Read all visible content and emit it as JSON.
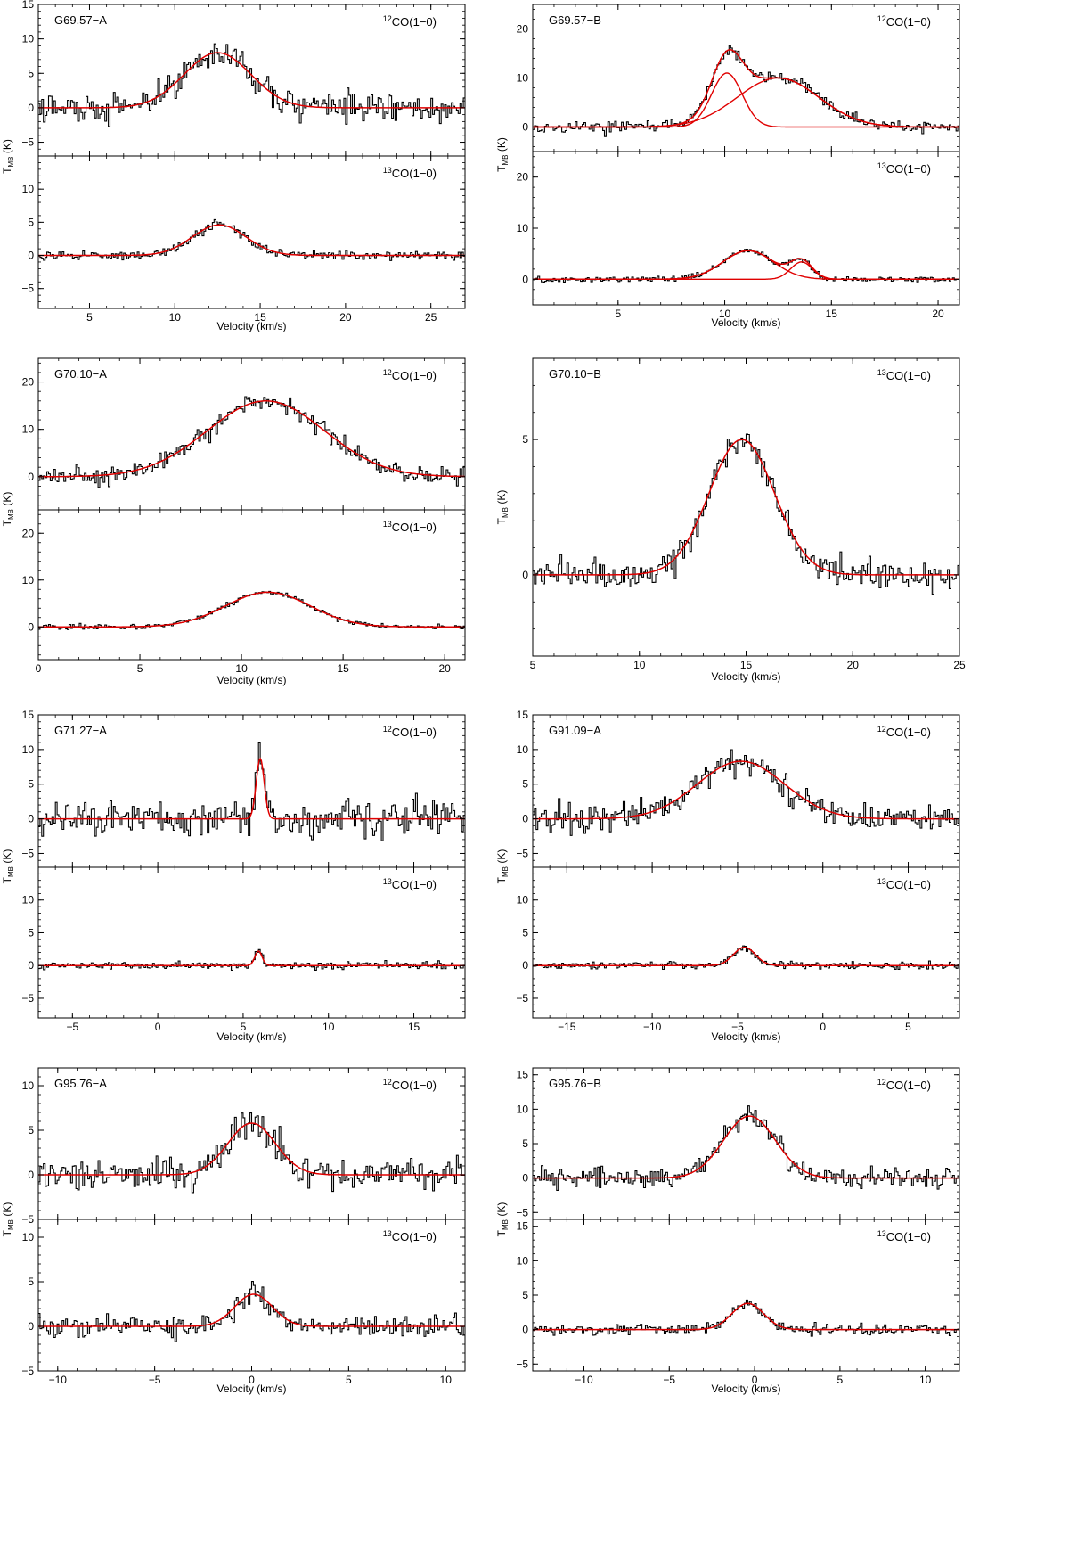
{
  "figure": {
    "colors": {
      "spectrum": "#000000",
      "fit": "#e00000",
      "axis": "#000000"
    },
    "tick_direction": "in"
  },
  "chart_data": [
    {
      "type": "line",
      "source": "G69.57-A",
      "xlabel": "Velocity (km/s)",
      "ylabel": "T_MB (K)",
      "xlim": [
        2,
        27
      ],
      "xticks": [
        5,
        10,
        15,
        20,
        25
      ],
      "panels": [
        {
          "line": "12CO(1-0)",
          "line_label": {
            "iso": "12",
            "rest": "CO(1−0)"
          },
          "ylim": [
            -7,
            15
          ],
          "yticks": [
            -5,
            0,
            5,
            10,
            15
          ],
          "show_ytick_labels": [
            -5,
            0,
            5,
            10,
            15
          ],
          "noise": 1.9,
          "components": [
            {
              "amp": 8.0,
              "center": 12.5,
              "fwhm": 4.6
            }
          ]
        },
        {
          "line": "13CO(1-0)",
          "line_label": {
            "iso": "13",
            "rest": "CO(1−0)"
          },
          "ylim": [
            -8,
            15
          ],
          "yticks": [
            -5,
            0,
            5,
            10,
            15
          ],
          "show_ytick_labels": [
            -5,
            0,
            5,
            10
          ],
          "noise": 0.55,
          "components": [
            {
              "amp": 4.6,
              "center": 12.6,
              "fwhm": 3.7
            }
          ]
        }
      ]
    },
    {
      "type": "line",
      "source": "G69.57-B",
      "xlabel": "Velocity (km/s)",
      "ylabel": "T_MB (K)",
      "xlim": [
        1,
        21
      ],
      "xticks": [
        5,
        10,
        15,
        20
      ],
      "panels": [
        {
          "line": "12CO(1-0)",
          "line_label": {
            "iso": "12",
            "rest": "CO(1−0)"
          },
          "ylim": [
            -5,
            25
          ],
          "yticks": [
            0,
            10,
            20
          ],
          "show_ytick_labels": [
            0,
            10,
            20
          ],
          "noise": 1.0,
          "components": [
            {
              "amp": 11.0,
              "center": 10.1,
              "fwhm": 1.7
            },
            {
              "amp": 10.0,
              "center": 12.5,
              "fwhm": 4.5
            }
          ]
        },
        {
          "line": "13CO(1-0)",
          "line_label": {
            "iso": "13",
            "rest": "CO(1−0)"
          },
          "ylim": [
            -5,
            25
          ],
          "yticks": [
            0,
            10,
            20
          ],
          "show_ytick_labels": [
            0,
            10,
            20
          ],
          "noise": 0.45,
          "components": [
            {
              "amp": 5.6,
              "center": 11.1,
              "fwhm": 2.8
            },
            {
              "amp": 3.4,
              "center": 13.6,
              "fwhm": 1.2
            }
          ]
        }
      ]
    },
    {
      "type": "line",
      "source": "G70.10-A",
      "xlabel": "Velocity (km/s)",
      "ylabel": "T_MB (K)",
      "xlim": [
        0,
        21
      ],
      "xticks": [
        0,
        5,
        10,
        15,
        20
      ],
      "panels": [
        {
          "line": "12CO(1-0)",
          "line_label": {
            "iso": "12",
            "rest": "CO(1−0)"
          },
          "ylim": [
            -7,
            25
          ],
          "yticks": [
            0,
            10,
            20
          ],
          "show_ytick_labels": [
            0,
            10,
            20
          ],
          "noise": 1.6,
          "components": [
            {
              "amp": 16.0,
              "center": 11.2,
              "fwhm": 6.8
            }
          ]
        },
        {
          "line": "13CO(1-0)",
          "line_label": {
            "iso": "13",
            "rest": "CO(1−0)"
          },
          "ylim": [
            -7,
            25
          ],
          "yticks": [
            0,
            10,
            20
          ],
          "show_ytick_labels": [
            0,
            10,
            20
          ],
          "noise": 0.5,
          "components": [
            {
              "amp": 7.4,
              "center": 11.3,
              "fwhm": 4.9
            }
          ]
        }
      ]
    },
    {
      "type": "line",
      "source": "G70.10-B",
      "xlabel": "Velocity (km/s)",
      "ylabel": "T_MB (K)",
      "xlim": [
        5,
        25
      ],
      "xticks": [
        5,
        10,
        15,
        20,
        25
      ],
      "panels": [
        {
          "line": "13CO(1-0)",
          "line_label": {
            "iso": "13",
            "rest": "CO(1−0)"
          },
          "ylim": [
            -3,
            8
          ],
          "yticks": [
            0,
            5
          ],
          "show_ytick_labels": [
            0,
            5
          ],
          "noise": 0.45,
          "components": [
            {
              "amp": 5.0,
              "center": 14.8,
              "fwhm": 3.6
            }
          ]
        }
      ]
    },
    {
      "type": "line",
      "source": "G71.27-A",
      "xlabel": "Velocity (km/s)",
      "ylabel": "T_MB (K)",
      "xlim": [
        -7,
        18
      ],
      "xticks": [
        -5,
        0,
        5,
        10,
        15
      ],
      "panels": [
        {
          "line": "12CO(1-0)",
          "line_label": {
            "iso": "12",
            "rest": "CO(1−0)"
          },
          "ylim": [
            -7,
            15
          ],
          "yticks": [
            -5,
            0,
            5,
            10,
            15
          ],
          "show_ytick_labels": [
            -5,
            0,
            5,
            10,
            15
          ],
          "noise": 2.2,
          "components": [
            {
              "amp": 8.7,
              "center": 6.0,
              "fwhm": 0.55
            }
          ]
        },
        {
          "line": "13CO(1-0)",
          "line_label": {
            "iso": "13",
            "rest": "CO(1−0)"
          },
          "ylim": [
            -8,
            15
          ],
          "yticks": [
            -5,
            0,
            5,
            10,
            15
          ],
          "show_ytick_labels": [
            -5,
            0,
            5,
            10
          ],
          "noise": 0.45,
          "components": [
            {
              "amp": 2.2,
              "center": 5.9,
              "fwhm": 0.5
            }
          ]
        }
      ]
    },
    {
      "type": "line",
      "source": "G91.09-A",
      "xlabel": "Velocity (km/s)",
      "ylabel": "T_MB (K)",
      "xlim": [
        -17,
        8
      ],
      "xticks": [
        -15,
        -10,
        -5,
        0,
        5
      ],
      "panels": [
        {
          "line": "12CO(1-0)",
          "line_label": {
            "iso": "12",
            "rest": "CO(1−0)"
          },
          "ylim": [
            -7,
            15
          ],
          "yticks": [
            -5,
            0,
            5,
            10,
            15
          ],
          "show_ytick_labels": [
            -5,
            0,
            5,
            10,
            15
          ],
          "noise": 2.0,
          "components": [
            {
              "amp": 8.3,
              "center": -4.8,
              "fwhm": 6.0
            }
          ]
        },
        {
          "line": "13CO(1-0)",
          "line_label": {
            "iso": "13",
            "rest": "CO(1−0)"
          },
          "ylim": [
            -8,
            15
          ],
          "yticks": [
            -5,
            0,
            5,
            10,
            15
          ],
          "show_ytick_labels": [
            -5,
            0,
            5,
            10
          ],
          "noise": 0.5,
          "components": [
            {
              "amp": 2.8,
              "center": -4.6,
              "fwhm": 1.5
            }
          ]
        }
      ]
    },
    {
      "type": "line",
      "source": "G95.76-A",
      "xlabel": "Velocity (km/s)",
      "ylabel": "T_MB (K)",
      "xlim": [
        -11,
        11
      ],
      "xticks": [
        -10,
        -5,
        0,
        5,
        10
      ],
      "panels": [
        {
          "line": "12CO(1-0)",
          "line_label": {
            "iso": "12",
            "rest": "CO(1−0)"
          },
          "ylim": [
            -5,
            12
          ],
          "yticks": [
            -5,
            0,
            5,
            10
          ],
          "show_ytick_labels": [
            -5,
            0,
            5,
            10
          ],
          "noise": 1.5,
          "components": [
            {
              "amp": 5.8,
              "center": 0.0,
              "fwhm": 2.9
            }
          ]
        },
        {
          "line": "13CO(1-0)",
          "line_label": {
            "iso": "13",
            "rest": "CO(1−0)"
          },
          "ylim": [
            -5,
            12
          ],
          "yticks": [
            -5,
            0,
            5,
            10
          ],
          "show_ytick_labels": [
            -5,
            0,
            5,
            10
          ],
          "noise": 1.0,
          "components": [
            {
              "amp": 3.6,
              "center": 0.1,
              "fwhm": 2.3
            }
          ]
        }
      ]
    },
    {
      "type": "line",
      "source": "G95.76-B",
      "xlabel": "Velocity (km/s)",
      "ylabel": "T_MB (K)",
      "xlim": [
        -13,
        12
      ],
      "xticks": [
        -10,
        -5,
        0,
        5,
        10
      ],
      "panels": [
        {
          "line": "12CO(1-0)",
          "line_label": {
            "iso": "12",
            "rest": "CO(1−0)"
          },
          "ylim": [
            -6,
            16
          ],
          "yticks": [
            -5,
            0,
            5,
            10,
            15
          ],
          "show_ytick_labels": [
            -5,
            0,
            5,
            10,
            15
          ],
          "noise": 1.4,
          "components": [
            {
              "amp": 9.0,
              "center": -0.3,
              "fwhm": 3.6
            }
          ]
        },
        {
          "line": "13CO(1-0)",
          "line_label": {
            "iso": "13",
            "rest": "CO(1−0)"
          },
          "ylim": [
            -6,
            16
          ],
          "yticks": [
            -5,
            0,
            5,
            10,
            15
          ],
          "show_ytick_labels": [
            -5,
            0,
            5,
            10,
            15
          ],
          "noise": 0.65,
          "components": [
            {
              "amp": 3.8,
              "center": -0.4,
              "fwhm": 2.2
            }
          ]
        }
      ]
    }
  ]
}
